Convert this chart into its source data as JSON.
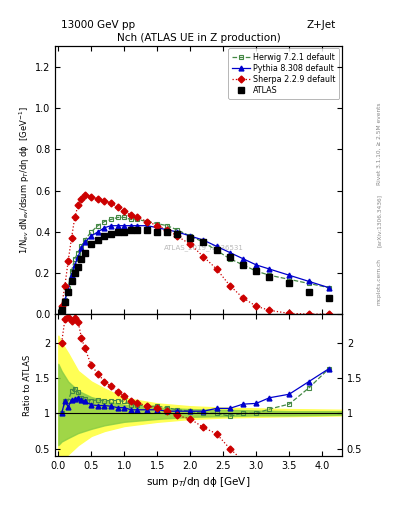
{
  "title_main": "Nch (ATLAS UE in Z production)",
  "title_top_left": "13000 GeV pp",
  "title_top_right": "Z+Jet",
  "ylabel_main": "1/N$_{ev}$ dN$_{ev}$/dsum p$_T$/dη dϕ  [GeV$^{-1}$]",
  "ylabel_ratio": "Ratio to ATLAS",
  "xlabel": "sum p$_T$/dη dϕ [GeV]",
  "right_label_top": "Rivet 3.1.10, ≥ 2.5M events",
  "right_label_bot": "[arXiv:1306.3436]",
  "right_label_bot2": "mcplots.cern.ch",
  "watermark": "ATLAS_2019_I1736531",
  "ylim_main": [
    0.0,
    1.3
  ],
  "ylim_ratio": [
    0.4,
    2.4
  ],
  "xlim": [
    -0.05,
    4.3
  ],
  "atlas_x": [
    0.05,
    0.1,
    0.15,
    0.2,
    0.25,
    0.3,
    0.35,
    0.4,
    0.5,
    0.6,
    0.7,
    0.8,
    0.9,
    1.0,
    1.1,
    1.2,
    1.35,
    1.5,
    1.65,
    1.8,
    2.0,
    2.2,
    2.4,
    2.6,
    2.8,
    3.0,
    3.2,
    3.5,
    3.8,
    4.1
  ],
  "atlas_y": [
    0.02,
    0.06,
    0.11,
    0.16,
    0.2,
    0.23,
    0.27,
    0.3,
    0.34,
    0.36,
    0.38,
    0.39,
    0.4,
    0.4,
    0.41,
    0.41,
    0.41,
    0.4,
    0.4,
    0.39,
    0.37,
    0.35,
    0.31,
    0.28,
    0.24,
    0.21,
    0.18,
    0.15,
    0.11,
    0.08
  ],
  "herwig_x": [
    0.05,
    0.1,
    0.15,
    0.2,
    0.25,
    0.3,
    0.35,
    0.4,
    0.5,
    0.6,
    0.7,
    0.8,
    0.9,
    1.0,
    1.1,
    1.2,
    1.35,
    1.5,
    1.65,
    1.8,
    2.0,
    2.2,
    2.4,
    2.6,
    2.8,
    3.0,
    3.2,
    3.5,
    3.8,
    4.1
  ],
  "herwig_y": [
    0.02,
    0.07,
    0.13,
    0.21,
    0.27,
    0.3,
    0.33,
    0.36,
    0.4,
    0.43,
    0.45,
    0.46,
    0.47,
    0.47,
    0.46,
    0.46,
    0.45,
    0.44,
    0.43,
    0.41,
    0.38,
    0.35,
    0.31,
    0.27,
    0.24,
    0.21,
    0.19,
    0.17,
    0.15,
    0.13
  ],
  "pythia_x": [
    0.05,
    0.1,
    0.15,
    0.2,
    0.25,
    0.3,
    0.35,
    0.4,
    0.5,
    0.6,
    0.7,
    0.8,
    0.9,
    1.0,
    1.1,
    1.2,
    1.35,
    1.5,
    1.65,
    1.8,
    2.0,
    2.2,
    2.4,
    2.6,
    2.8,
    3.0,
    3.2,
    3.5,
    3.8,
    4.1
  ],
  "pythia_y": [
    0.02,
    0.07,
    0.12,
    0.19,
    0.24,
    0.28,
    0.32,
    0.35,
    0.38,
    0.4,
    0.42,
    0.43,
    0.43,
    0.43,
    0.43,
    0.43,
    0.43,
    0.42,
    0.41,
    0.4,
    0.38,
    0.36,
    0.33,
    0.3,
    0.27,
    0.24,
    0.22,
    0.19,
    0.16,
    0.13
  ],
  "sherpa_x": [
    0.05,
    0.1,
    0.15,
    0.2,
    0.25,
    0.3,
    0.35,
    0.4,
    0.5,
    0.6,
    0.7,
    0.8,
    0.9,
    1.0,
    1.1,
    1.2,
    1.35,
    1.5,
    1.65,
    1.8,
    2.0,
    2.2,
    2.4,
    2.6,
    2.8,
    3.0,
    3.2,
    3.5,
    3.8,
    4.1
  ],
  "sherpa_y": [
    0.04,
    0.14,
    0.26,
    0.37,
    0.47,
    0.53,
    0.56,
    0.58,
    0.57,
    0.56,
    0.55,
    0.54,
    0.52,
    0.5,
    0.48,
    0.47,
    0.45,
    0.43,
    0.41,
    0.38,
    0.34,
    0.28,
    0.22,
    0.14,
    0.08,
    0.04,
    0.02,
    0.005,
    0.002,
    0.001
  ],
  "herwig_ratio": [
    1.0,
    1.17,
    1.18,
    1.31,
    1.35,
    1.3,
    1.22,
    1.2,
    1.18,
    1.19,
    1.18,
    1.18,
    1.18,
    1.17,
    1.12,
    1.12,
    1.1,
    1.1,
    1.08,
    1.05,
    1.03,
    1.0,
    1.0,
    0.96,
    1.0,
    1.0,
    1.06,
    1.13,
    1.36,
    1.63
  ],
  "pythia_ratio": [
    1.0,
    1.17,
    1.09,
    1.19,
    1.2,
    1.22,
    1.19,
    1.17,
    1.12,
    1.11,
    1.11,
    1.1,
    1.08,
    1.08,
    1.05,
    1.05,
    1.05,
    1.05,
    1.03,
    1.03,
    1.03,
    1.03,
    1.07,
    1.07,
    1.13,
    1.14,
    1.22,
    1.27,
    1.45,
    1.63
  ],
  "sherpa_ratio": [
    2.0,
    2.33,
    2.36,
    2.31,
    2.35,
    2.3,
    2.07,
    1.93,
    1.68,
    1.56,
    1.45,
    1.38,
    1.3,
    1.25,
    1.17,
    1.15,
    1.1,
    1.08,
    1.03,
    0.97,
    0.92,
    0.8,
    0.71,
    0.5,
    0.33,
    0.19,
    0.11,
    0.033,
    0.018,
    0.013
  ],
  "band_x": [
    0.0,
    0.05,
    0.15,
    0.3,
    0.5,
    0.7,
    1.0,
    1.5,
    2.0,
    2.5,
    3.0,
    3.5,
    4.3
  ],
  "band_yellow_low": [
    0.3,
    0.35,
    0.42,
    0.55,
    0.68,
    0.75,
    0.82,
    0.88,
    0.92,
    0.94,
    0.95,
    0.96,
    0.97
  ],
  "band_yellow_high": [
    2.1,
    2.0,
    1.85,
    1.6,
    1.45,
    1.35,
    1.22,
    1.14,
    1.1,
    1.08,
    1.07,
    1.06,
    1.05
  ],
  "band_green_low": [
    0.55,
    0.6,
    0.65,
    0.72,
    0.78,
    0.83,
    0.88,
    0.92,
    0.95,
    0.96,
    0.97,
    0.97,
    0.98
  ],
  "band_green_high": [
    1.7,
    1.6,
    1.45,
    1.32,
    1.23,
    1.18,
    1.12,
    1.08,
    1.06,
    1.05,
    1.04,
    1.03,
    1.03
  ],
  "color_atlas": "#000000",
  "color_herwig": "#448844",
  "color_pythia": "#0000cc",
  "color_sherpa": "#cc0000",
  "color_band_yellow": "#ffff55",
  "color_band_green": "#88cc44"
}
